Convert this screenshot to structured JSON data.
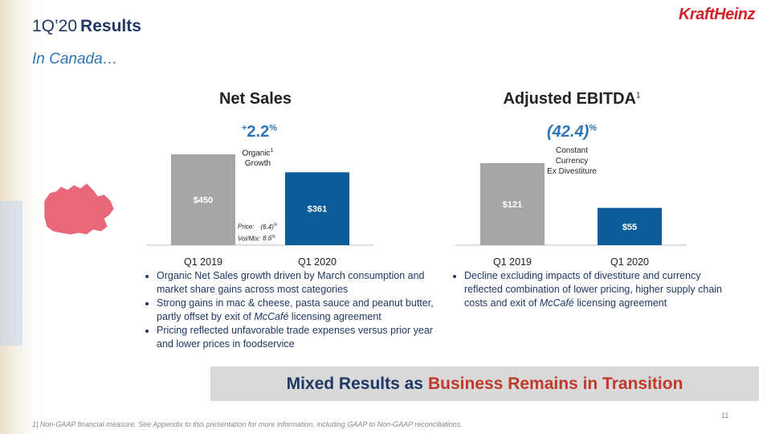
{
  "header": {
    "title_light": "1Q’20",
    "title_bold": "Results",
    "subtitle": "In Canada…"
  },
  "logo": {
    "kraft": "Kraft",
    "heinz": "Heinz"
  },
  "chart_data": [
    {
      "type": "bar",
      "title": "Net Sales",
      "growth": {
        "sign": "+",
        "value": "2.2",
        "unit": "%"
      },
      "growth_note": {
        "text": "Organic",
        "sup": "1",
        "text2": "Growth"
      },
      "categories": [
        "Q1 2019",
        "Q1 2020"
      ],
      "values": [
        450,
        361
      ],
      "value_labels": [
        "$450",
        "$361"
      ],
      "colors": [
        "#a6a6a6",
        "#0b5c99"
      ],
      "breakdown": [
        {
          "label": "Price:",
          "value": "(6.4)",
          "unit": "%"
        },
        {
          "label": "Vol/Mix:",
          "value": "8.6",
          "unit": "%"
        }
      ],
      "bullets": [
        [
          "Organic Net Sales growth driven by March consumption and market share gains across most categories"
        ],
        [
          "Strong gains in mac & cheese, pasta sauce and peanut butter, partly offset by exit of ",
          "McCafé",
          " licensing agreement"
        ],
        [
          "Pricing reflected unfavorable trade expenses versus prior year and lower prices in foodservice"
        ]
      ]
    },
    {
      "type": "bar",
      "title": "Adjusted EBITDA",
      "title_sup": "1",
      "growth": {
        "value": "(42.4)",
        "unit": "%"
      },
      "growth_note": {
        "text": "Constant",
        "text2": "Currency",
        "text3": "Ex Divestiture"
      },
      "categories": [
        "Q1 2019",
        "Q1 2020"
      ],
      "values": [
        121,
        55
      ],
      "value_labels": [
        "$121",
        "$55"
      ],
      "colors": [
        "#a6a6a6",
        "#0b5c99"
      ],
      "bullets": [
        [
          "Decline excluding impacts of divestiture and currency reflected combination of lower pricing, higher supply chain costs and exit of ",
          "McCafé",
          " licensing agreement"
        ]
      ]
    }
  ],
  "banner": {
    "text": "Mixed Results as",
    "highlight": "Business Remains in Transition"
  },
  "footer": {
    "page": "11",
    "note_number": "1",
    "note": "| Non-GAAP financial measure. See Appendix to this presentation for more information, including GAAP to Non-GAAP reconciliations."
  }
}
